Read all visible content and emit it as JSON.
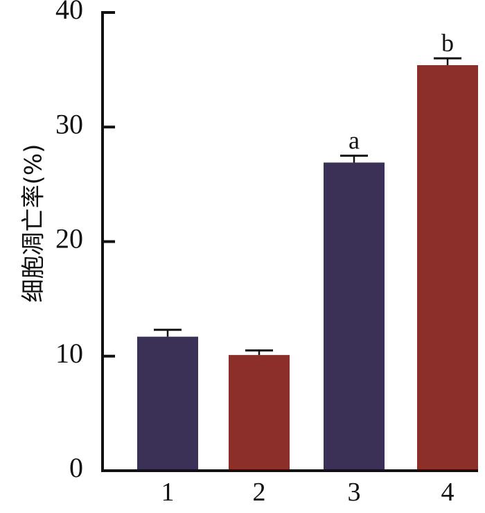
{
  "chart_data": {
    "type": "bar",
    "categories": [
      "1",
      "2",
      "3",
      "4"
    ],
    "values": [
      11.7,
      10.1,
      26.9,
      35.4
    ],
    "errors": [
      0.6,
      0.4,
      0.6,
      0.6
    ],
    "significance": [
      "",
      "",
      "a",
      "b"
    ],
    "bar_colors": [
      "#3b3055",
      "#8c2e2a",
      "#3b3055",
      "#8c2e2a"
    ],
    "ylabel": "细胞凋亡率(%)",
    "xlabel": "",
    "ylim": [
      0,
      40
    ],
    "yticks": [
      0,
      10,
      20,
      30,
      40
    ],
    "grid": false
  }
}
